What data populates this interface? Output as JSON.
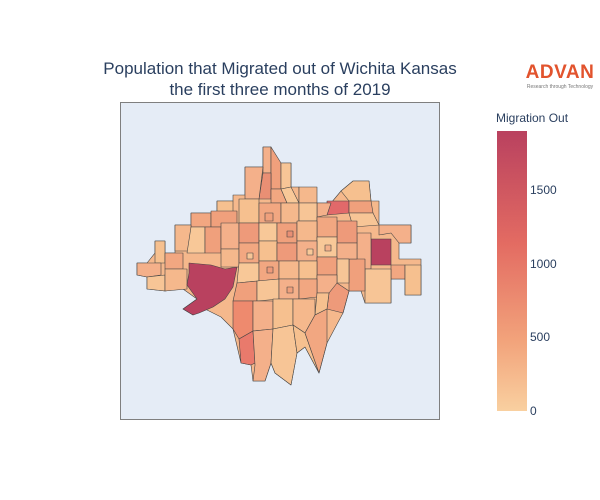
{
  "title": {
    "line1": "Population that Migrated out of Wichita Kansas",
    "line2": "the first three months of 2019"
  },
  "logo": {
    "name": "ADVAN",
    "tagline": "Research through Technology",
    "color": "#e2532d"
  },
  "map": {
    "background_color": "#e5ecf6",
    "region_border_color": "#444444",
    "colorscale": [
      "#f9d0a0",
      "#f2a37b",
      "#e36b62",
      "#b9415f"
    ]
  },
  "colorbar": {
    "title": "Migration Out",
    "min": 0,
    "max": 1900,
    "ticks": [
      {
        "label": "1500",
        "value": 1500
      },
      {
        "label": "1000",
        "value": 1000
      },
      {
        "label": "500",
        "value": 500
      },
      {
        "label": "0",
        "value": 0
      }
    ]
  }
}
